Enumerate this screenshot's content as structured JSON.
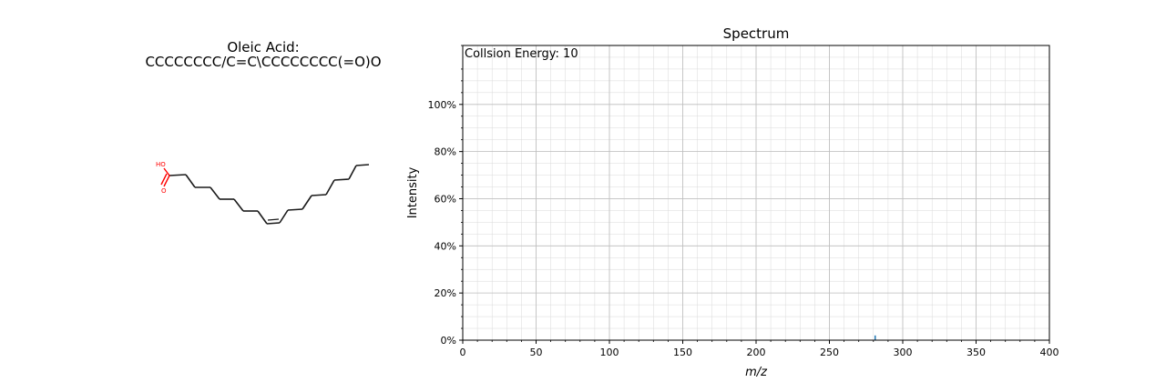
{
  "molecule": {
    "name": "Oleic Acid:",
    "smiles": "CCCCCCCC/C=C\\CCCCCCCC(=O)O",
    "atom_labels": {
      "hydroxyl": "HO",
      "carbonyl_oxygen": "O"
    },
    "colors": {
      "bond": "#1a1a1a",
      "heteroatom": "#ff0000"
    }
  },
  "chart_data": {
    "type": "bar",
    "title": "Spectrum",
    "annotation": "Collsion Energy: 10",
    "xlabel": "m/z",
    "ylabel": "Intensity",
    "xlim": [
      0,
      400
    ],
    "ylim": [
      0,
      1.25
    ],
    "x_ticks": [
      0,
      50,
      100,
      150,
      200,
      250,
      300,
      350,
      400
    ],
    "y_ticks": [
      0,
      0.2,
      0.4,
      0.6,
      0.8,
      1.0
    ],
    "y_tick_labels": [
      "0%",
      "20%",
      "40%",
      "60%",
      "80%",
      "100%"
    ],
    "grid": true,
    "peaks": [
      {
        "mz": 281.2,
        "intensity": 0.02
      }
    ],
    "colors": {
      "peak": "#1f77b4",
      "grid": "#d9d9d9"
    }
  }
}
